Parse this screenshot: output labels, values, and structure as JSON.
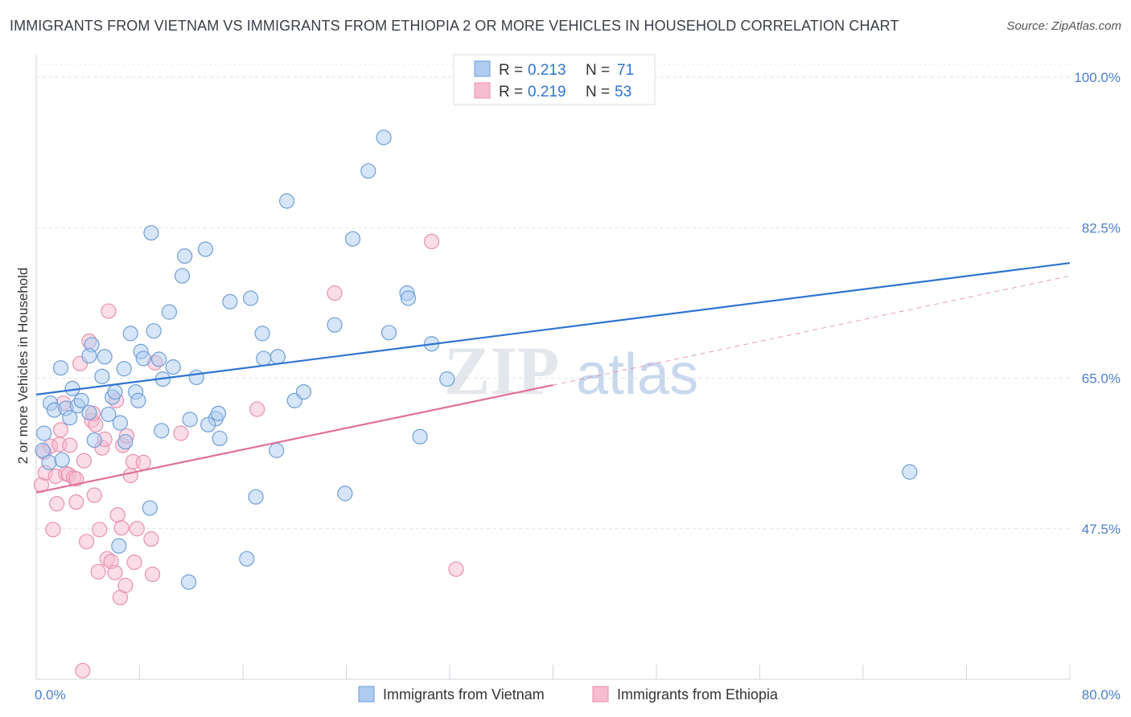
{
  "title": "IMMIGRANTS FROM VIETNAM VS IMMIGRANTS FROM ETHIOPIA 2 OR MORE VEHICLES IN HOUSEHOLD CORRELATION CHART",
  "source": "Source: ZipAtlas.com",
  "watermark": {
    "zip": "ZIP",
    "atlas": "atlas"
  },
  "colors": {
    "vietnam_fill": "#aecbf0",
    "vietnam_stroke": "#6f9ed8",
    "vietnam_line": "#2f74d0",
    "ethiopia_fill": "#f6bcd0",
    "ethiopia_stroke": "#e890b0",
    "ethiopia_line": "#e0709a",
    "tick_text": "#4a7fd0",
    "grid": "#dde3ea"
  },
  "chart_data": {
    "type": "scatter",
    "title": "IMMIGRANTS FROM VIETNAM VS IMMIGRANTS FROM ETHIOPIA 2 OR MORE VEHICLES IN HOUSEHOLD CORRELATION CHART",
    "xlabel": "",
    "ylabel": "2 or more Vehicles in Household",
    "xlim": [
      0,
      80
    ],
    "ylim": [
      30,
      101.5
    ],
    "x_tick_labels": [
      "0.0%",
      "80.0%"
    ],
    "y_ticks": [
      47.5,
      65.0,
      82.5,
      100.0
    ],
    "y_tick_labels": [
      "47.5%",
      "65.0%",
      "82.5%",
      "100.0%"
    ],
    "legend": [
      {
        "series": "Immigrants from Vietnam",
        "r_label": "R =",
        "r": "0.213",
        "n_label": "N =",
        "n": "71"
      },
      {
        "series": "Immigrants from Ethiopia",
        "r_label": "R =",
        "r": "0.219",
        "n_label": "N =",
        "n": "53"
      }
    ],
    "series": [
      {
        "name": "Immigrants from Vietnam",
        "trend": {
          "x0": 0,
          "y0": 63.1,
          "x1": 80,
          "y1": 78.4
        },
        "points": [
          [
            0.6,
            58.6
          ],
          [
            1.1,
            62.1
          ],
          [
            1.4,
            61.3
          ],
          [
            1.9,
            66.2
          ],
          [
            2.3,
            61.5
          ],
          [
            2.6,
            60.4
          ],
          [
            2.8,
            63.8
          ],
          [
            3.2,
            61.8
          ],
          [
            3.5,
            62.4
          ],
          [
            4.1,
            61.0
          ],
          [
            4.3,
            68.9
          ],
          [
            4.5,
            57.8
          ],
          [
            4.1,
            67.6
          ],
          [
            5.1,
            65.2
          ],
          [
            5.3,
            67.5
          ],
          [
            5.9,
            62.8
          ],
          [
            6.1,
            63.4
          ],
          [
            6.5,
            59.8
          ],
          [
            6.8,
            66.1
          ],
          [
            6.9,
            57.6
          ],
          [
            7.3,
            70.2
          ],
          [
            7.7,
            63.4
          ],
          [
            7.9,
            62.4
          ],
          [
            8.1,
            68.1
          ],
          [
            8.3,
            67.3
          ],
          [
            8.8,
            49.9
          ],
          [
            8.9,
            81.9
          ],
          [
            9.1,
            70.5
          ],
          [
            9.5,
            67.2
          ],
          [
            9.8,
            64.9
          ],
          [
            10.3,
            72.7
          ],
          [
            10.6,
            66.3
          ],
          [
            11.3,
            76.9
          ],
          [
            11.5,
            79.2
          ],
          [
            11.8,
            41.3
          ],
          [
            11.9,
            60.2
          ],
          [
            12.4,
            65.1
          ],
          [
            13.1,
            80.0
          ],
          [
            13.9,
            60.3
          ],
          [
            14.1,
            60.9
          ],
          [
            14.2,
            58.0
          ],
          [
            15.0,
            73.9
          ],
          [
            16.6,
            74.3
          ],
          [
            17.5,
            70.2
          ],
          [
            17.6,
            67.3
          ],
          [
            18.6,
            56.6
          ],
          [
            18.7,
            67.5
          ],
          [
            19.4,
            85.6
          ],
          [
            20.0,
            62.4
          ],
          [
            20.7,
            63.4
          ],
          [
            23.1,
            71.2
          ],
          [
            23.9,
            51.6
          ],
          [
            24.5,
            81.2
          ],
          [
            25.7,
            89.1
          ],
          [
            26.9,
            93.0
          ],
          [
            27.3,
            70.3
          ],
          [
            28.7,
            74.9
          ],
          [
            28.8,
            74.3
          ],
          [
            29.7,
            58.2
          ],
          [
            30.6,
            69.0
          ],
          [
            31.8,
            64.9
          ],
          [
            67.6,
            54.1
          ],
          [
            0.5,
            56.6
          ],
          [
            1.0,
            55.2
          ],
          [
            2.0,
            55.5
          ],
          [
            16.3,
            44.0
          ],
          [
            5.6,
            60.8
          ],
          [
            6.4,
            45.5
          ],
          [
            13.3,
            59.6
          ],
          [
            17.0,
            51.2
          ],
          [
            9.7,
            58.9
          ]
        ]
      },
      {
        "name": "Immigrants from Ethiopia",
        "trend": {
          "x0": 0,
          "y0": 51.7,
          "x1": 40,
          "y1": 64.2,
          "dash_x1": 80,
          "dash_y1": 76.9
        },
        "points": [
          [
            0.4,
            52.6
          ],
          [
            0.6,
            56.4
          ],
          [
            0.7,
            54.0
          ],
          [
            1.1,
            57.1
          ],
          [
            1.3,
            47.4
          ],
          [
            1.5,
            53.6
          ],
          [
            1.6,
            50.4
          ],
          [
            1.8,
            57.3
          ],
          [
            1.9,
            59.0
          ],
          [
            2.3,
            53.9
          ],
          [
            2.5,
            53.8
          ],
          [
            2.6,
            57.2
          ],
          [
            2.9,
            53.4
          ],
          [
            3.1,
            53.3
          ],
          [
            3.1,
            50.6
          ],
          [
            3.4,
            66.7
          ],
          [
            3.7,
            55.4
          ],
          [
            3.9,
            46.0
          ],
          [
            4.1,
            69.3
          ],
          [
            4.3,
            60.1
          ],
          [
            4.5,
            51.4
          ],
          [
            4.6,
            59.6
          ],
          [
            4.8,
            42.5
          ],
          [
            4.9,
            47.4
          ],
          [
            5.1,
            56.9
          ],
          [
            5.3,
            57.9
          ],
          [
            5.5,
            44.0
          ],
          [
            5.6,
            72.8
          ],
          [
            5.8,
            43.7
          ],
          [
            6.1,
            42.4
          ],
          [
            6.2,
            62.4
          ],
          [
            6.3,
            49.1
          ],
          [
            6.5,
            39.5
          ],
          [
            6.6,
            47.6
          ],
          [
            6.7,
            57.2
          ],
          [
            6.9,
            40.9
          ],
          [
            7.0,
            58.3
          ],
          [
            7.3,
            53.7
          ],
          [
            7.5,
            55.3
          ],
          [
            7.6,
            43.6
          ],
          [
            7.8,
            47.5
          ],
          [
            8.3,
            55.2
          ],
          [
            8.9,
            46.3
          ],
          [
            9.0,
            42.2
          ],
          [
            9.2,
            66.8
          ],
          [
            11.2,
            58.6
          ],
          [
            17.1,
            61.4
          ],
          [
            23.1,
            74.9
          ],
          [
            30.6,
            80.9
          ],
          [
            32.5,
            42.8
          ],
          [
            3.6,
            31.0
          ],
          [
            2.1,
            62.1
          ],
          [
            4.4,
            60.9
          ]
        ]
      }
    ]
  }
}
